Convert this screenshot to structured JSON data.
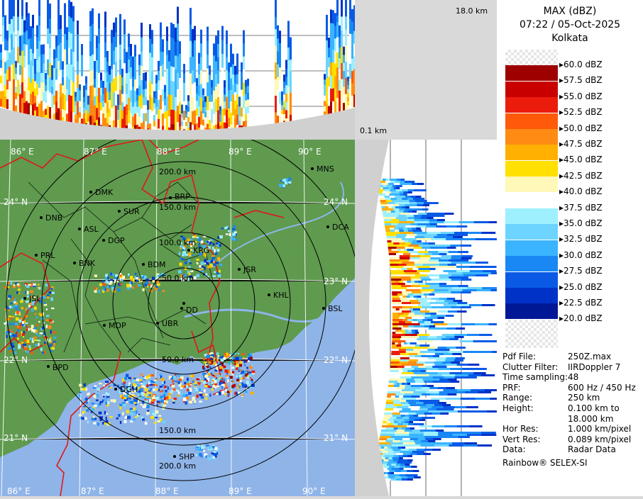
{
  "legend": {
    "product": "MAX (dBZ)",
    "datetime": "07:22 / 05-Oct-2025",
    "station": "Kolkata",
    "scale": [
      {
        "label": "60.0 dBZ",
        "color": "checker"
      },
      {
        "label": "57.5 dBZ",
        "color": "#9e0000"
      },
      {
        "label": "55.0 dBZ",
        "color": "#c80000"
      },
      {
        "label": "52.5 dBZ",
        "color": "#ec1c0c"
      },
      {
        "label": "50.0 dBZ",
        "color": "#ff5a0a"
      },
      {
        "label": "47.5 dBZ",
        "color": "#ff8a14"
      },
      {
        "label": "45.0 dBZ",
        "color": "#ffb000"
      },
      {
        "label": "42.5 dBZ",
        "color": "#ffe000"
      },
      {
        "label": "40.0 dBZ",
        "color": "#fff8b8"
      },
      {
        "label": "37.5 dBZ",
        "color": "#ffffff"
      },
      {
        "label": "35.0 dBZ",
        "color": "#9ef0ff"
      },
      {
        "label": "32.5 dBZ",
        "color": "#6cd4ff"
      },
      {
        "label": "30.0 dBZ",
        "color": "#3ab4ff"
      },
      {
        "label": "27.5 dBZ",
        "color": "#1a88f4"
      },
      {
        "label": "25.0 dBZ",
        "color": "#0a5ae6"
      },
      {
        "label": "22.5 dBZ",
        "color": "#0032c8"
      },
      {
        "label": "20.0 dBZ",
        "color": "#001896"
      }
    ]
  },
  "top_panel": {
    "height_label": "18.0 km",
    "base_label": "0.1 km"
  },
  "metadata": [
    {
      "key": "Pdf File:",
      "value": "250Z.max"
    },
    {
      "key": "Clutter Filter:",
      "value": "IIRDoppler 7"
    },
    {
      "key": "Time sampling:",
      "value": "48"
    },
    {
      "key": "PRF:",
      "value": "600 Hz / 450 Hz"
    },
    {
      "key": "Range:",
      "value": "250 km"
    },
    {
      "key": "Height:",
      "value": "0.100 km to"
    },
    {
      "key": "",
      "value": "18.000 km"
    },
    {
      "key": "Hor Res:",
      "value": "1.000 km/pixel"
    },
    {
      "key": "Vert Res:",
      "value": "0.089 km/pixel"
    },
    {
      "key": "Data:",
      "value": "Radar Data"
    }
  ],
  "software": "Rainbow® SELEX-SI",
  "map": {
    "lon_labels": [
      "86° E",
      "87° E",
      "88° E",
      "89° E",
      "90° E"
    ],
    "lat_labels": [
      "24° N",
      "23° N",
      "22° N",
      "21° N"
    ],
    "range_labels": [
      "50.0 km",
      "100.0 km",
      "150.0 km",
      "200.0 km"
    ],
    "places": [
      "MNS",
      "DMK",
      "BRP",
      "SUR",
      "DNB",
      "ASL",
      "DGP",
      "DCA",
      "KRG",
      "PRL",
      "BNK",
      "BDM",
      "JSR",
      "KHL",
      "BSL",
      "JSL",
      "DD",
      "MDP",
      "UBR",
      "BPD",
      "DGH",
      "SHP"
    ]
  },
  "colors": {
    "land": "#5f9a4f",
    "sea": "#8fb4e8",
    "border": "#e01818",
    "district": "#000000"
  }
}
